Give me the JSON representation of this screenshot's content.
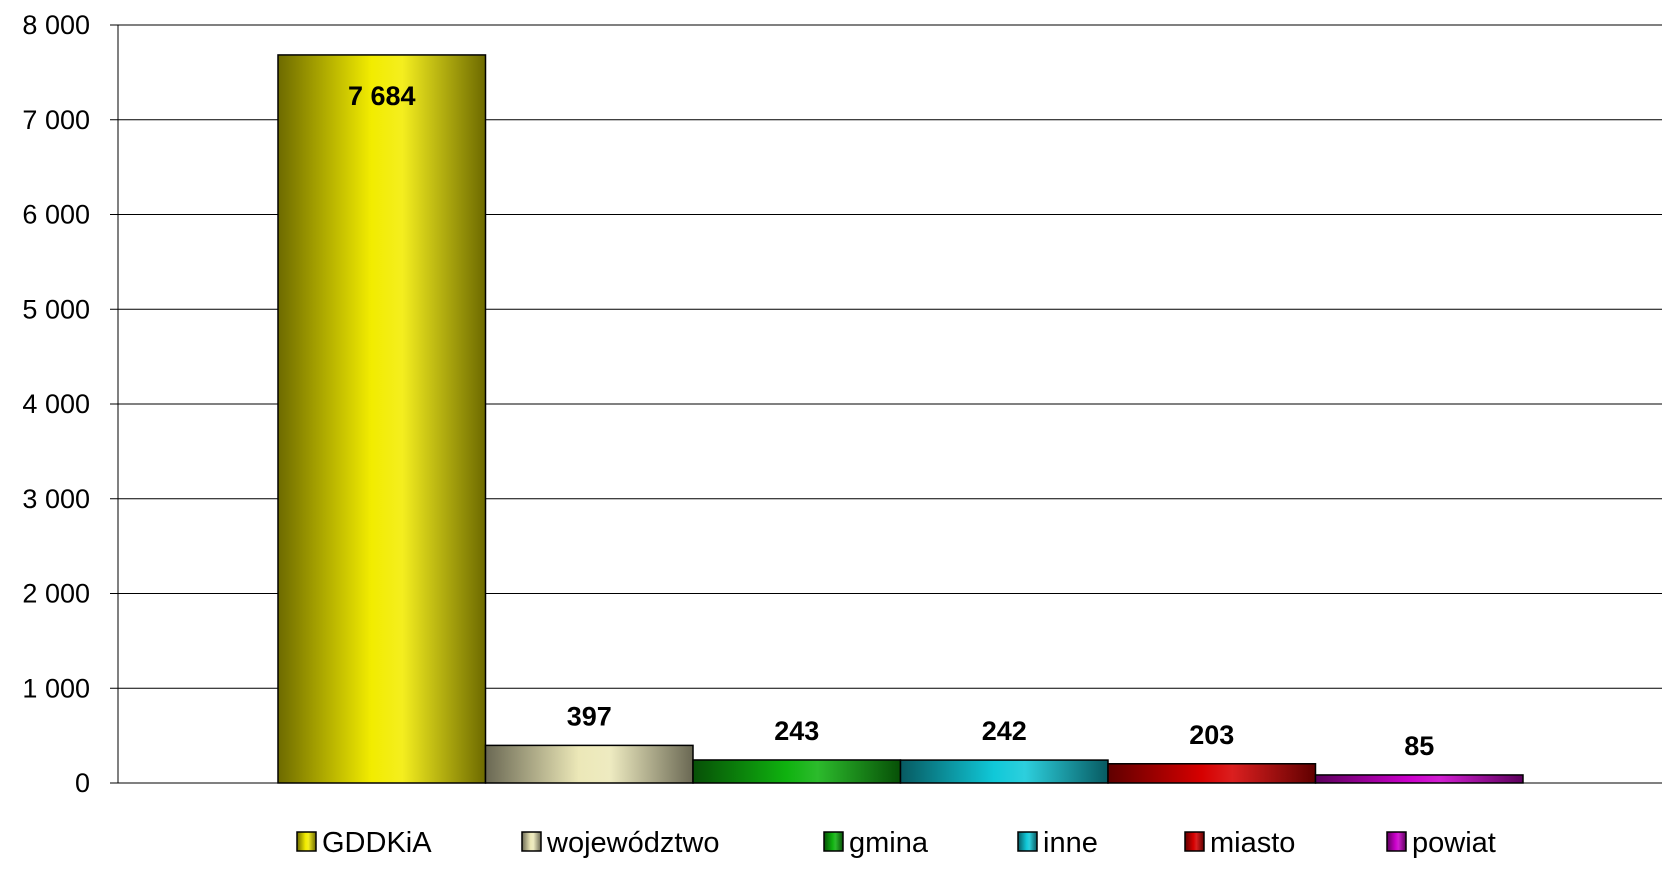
{
  "chart_data": {
    "type": "bar",
    "categories": [
      "GDDKiA",
      "województwo",
      "gmina",
      "inne",
      "miasto",
      "powiat"
    ],
    "series": [
      {
        "values": [
          7684,
          397,
          243,
          242,
          203,
          85
        ],
        "data_labels": [
          "7 684",
          "397",
          "243",
          "242",
          "203",
          "85"
        ]
      }
    ],
    "colors": [
      "#f2ec00",
      "#ece8b8",
      "#0fb20f",
      "#10c8d8",
      "#d60000",
      "#cc00cc"
    ],
    "ylim": [
      0,
      8000
    ],
    "yticks": [
      0,
      1000,
      2000,
      3000,
      4000,
      5000,
      6000,
      7000,
      8000
    ],
    "ytick_labels": [
      "0",
      "1 000",
      "2 000",
      "3 000",
      "4 000",
      "5 000",
      "6 000",
      "7 000",
      "8 000"
    ],
    "grid": true,
    "legend": {
      "position": "bottom",
      "entries": [
        "GDDKiA",
        "województwo",
        "gmina",
        "inne",
        "miasto",
        "powiat"
      ]
    }
  }
}
